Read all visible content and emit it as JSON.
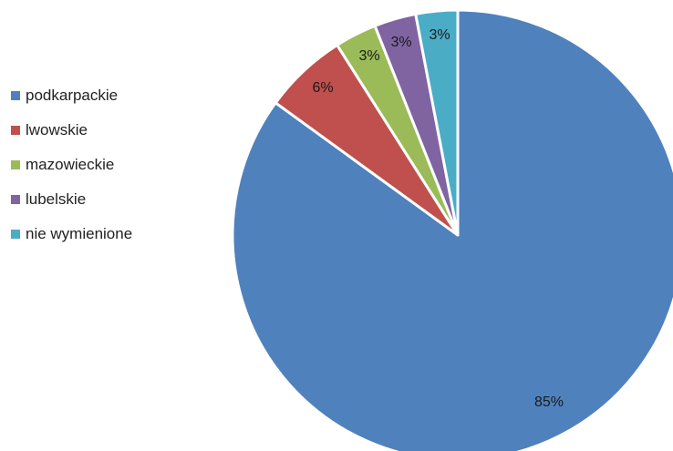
{
  "chart_data": {
    "type": "pie",
    "title": "",
    "categories": [
      "podkarpackie",
      "lwowskie",
      "mazowieckie",
      "lubelskie",
      "nie wymienione"
    ],
    "values": [
      85,
      6,
      3,
      3,
      3
    ],
    "labels": [
      "85%",
      "6%",
      "3%",
      "3%",
      "3%"
    ],
    "colors": [
      "#4F81BD",
      "#C0504D",
      "#9BBB59",
      "#8064A2",
      "#4BACC6"
    ],
    "legend_position": "left",
    "start_angle_deg": 0,
    "direction": "clockwise"
  }
}
